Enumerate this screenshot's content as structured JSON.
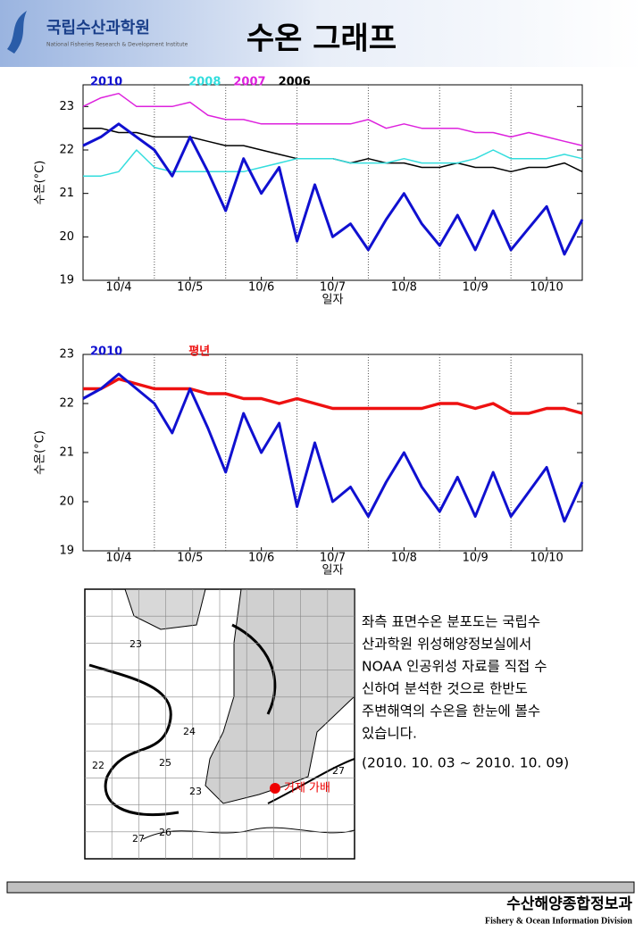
{
  "header": {
    "logo_name": "국립수산과학원",
    "logo_subtitle": "National Fisheries Research & Development Institute",
    "title": "수온 그래프"
  },
  "chart_data": [
    {
      "type": "line",
      "x_label": "일자",
      "y_label": "수온(°C)",
      "x": [
        0,
        0.25,
        0.5,
        0.75,
        1,
        1.25,
        1.5,
        1.75,
        2,
        2.25,
        2.5,
        2.75,
        3,
        3.25,
        3.5,
        3.75,
        4,
        4.25,
        4.5,
        4.75,
        5,
        5.25,
        5.5,
        5.75,
        6,
        6.25,
        6.5,
        6.75,
        7
      ],
      "xlim": [
        0,
        7
      ],
      "xticks": [
        {
          "value": 0.5,
          "label": "10/4"
        },
        {
          "value": 1.5,
          "label": "10/5"
        },
        {
          "value": 2.5,
          "label": "10/6"
        },
        {
          "value": 3.5,
          "label": "10/7"
        },
        {
          "value": 4.5,
          "label": "10/8"
        },
        {
          "value": 5.5,
          "label": "10/9"
        },
        {
          "value": 6.5,
          "label": "10/10"
        }
      ],
      "ylim": [
        19,
        23.5
      ],
      "yticks": [
        19,
        20,
        21,
        22,
        23
      ],
      "series": [
        {
          "name": "2010",
          "color": "#1010d0",
          "width": 3,
          "values": [
            22.1,
            22.3,
            22.6,
            22.3,
            22.0,
            21.4,
            22.3,
            21.5,
            20.6,
            21.8,
            21.0,
            21.6,
            19.9,
            21.2,
            20.0,
            20.3,
            19.7,
            20.4,
            21.0,
            20.3,
            19.8,
            20.5,
            19.7,
            20.6,
            19.7,
            20.2,
            20.7,
            19.6,
            20.4
          ]
        },
        {
          "name": "2008",
          "color": "#33dddd",
          "width": 1.5,
          "values": [
            21.4,
            21.4,
            21.5,
            22.0,
            21.6,
            21.5,
            21.5,
            21.5,
            21.5,
            21.5,
            21.6,
            21.7,
            21.8,
            21.8,
            21.8,
            21.7,
            21.7,
            21.7,
            21.8,
            21.7,
            21.7,
            21.7,
            21.8,
            22.0,
            21.8,
            21.8,
            21.8,
            21.9,
            21.8
          ]
        },
        {
          "name": "2007",
          "color": "#dd22dd",
          "width": 1.5,
          "values": [
            23.0,
            23.2,
            23.3,
            23.0,
            23.0,
            23.0,
            23.1,
            22.8,
            22.7,
            22.7,
            22.6,
            22.6,
            22.6,
            22.6,
            22.6,
            22.6,
            22.7,
            22.5,
            22.6,
            22.5,
            22.5,
            22.5,
            22.4,
            22.4,
            22.3,
            22.4,
            22.3,
            22.2,
            22.1
          ]
        },
        {
          "name": "2006",
          "color": "#000000",
          "width": 1.5,
          "values": [
            22.5,
            22.5,
            22.4,
            22.4,
            22.3,
            22.3,
            22.3,
            22.2,
            22.1,
            22.1,
            22.0,
            21.9,
            21.8,
            21.8,
            21.8,
            21.7,
            21.8,
            21.7,
            21.7,
            21.6,
            21.6,
            21.7,
            21.6,
            21.6,
            21.5,
            21.6,
            21.6,
            21.7,
            21.5
          ]
        }
      ]
    },
    {
      "type": "line",
      "x_label": "일자",
      "y_label": "수온(°C)",
      "x": [
        0,
        0.25,
        0.5,
        0.75,
        1,
        1.25,
        1.5,
        1.75,
        2,
        2.25,
        2.5,
        2.75,
        3,
        3.25,
        3.5,
        3.75,
        4,
        4.25,
        4.5,
        4.75,
        5,
        5.25,
        5.5,
        5.75,
        6,
        6.25,
        6.5,
        6.75,
        7
      ],
      "xlim": [
        0,
        7
      ],
      "xticks": [
        {
          "value": 0.5,
          "label": "10/4"
        },
        {
          "value": 1.5,
          "label": "10/5"
        },
        {
          "value": 2.5,
          "label": "10/6"
        },
        {
          "value": 3.5,
          "label": "10/7"
        },
        {
          "value": 4.5,
          "label": "10/8"
        },
        {
          "value": 5.5,
          "label": "10/9"
        },
        {
          "value": 6.5,
          "label": "10/10"
        }
      ],
      "ylim": [
        19,
        23
      ],
      "yticks": [
        19,
        20,
        21,
        22,
        23
      ],
      "series": [
        {
          "name": "2010",
          "color": "#1010d0",
          "width": 3,
          "values": [
            22.1,
            22.3,
            22.6,
            22.3,
            22.0,
            21.4,
            22.3,
            21.5,
            20.6,
            21.8,
            21.0,
            21.6,
            19.9,
            21.2,
            20.0,
            20.3,
            19.7,
            20.4,
            21.0,
            20.3,
            19.8,
            20.5,
            19.7,
            20.6,
            19.7,
            20.2,
            20.7,
            19.6,
            20.4
          ]
        },
        {
          "name": "평년",
          "color": "#ee1111",
          "width": 3.5,
          "values": [
            22.3,
            22.3,
            22.5,
            22.4,
            22.3,
            22.3,
            22.3,
            22.2,
            22.2,
            22.1,
            22.1,
            22.0,
            22.1,
            22.0,
            21.9,
            21.9,
            21.9,
            21.9,
            21.9,
            21.9,
            22.0,
            22.0,
            21.9,
            22.0,
            21.8,
            21.8,
            21.9,
            21.9,
            21.8
          ]
        }
      ]
    }
  ],
  "map": {
    "contours": [
      "23",
      "24",
      "25",
      "22",
      "23",
      "26",
      "27",
      "27"
    ],
    "station": "거제 가배"
  },
  "description": {
    "lines": [
      "좌측 표면수온 분포도는 국립수",
      "산과학원 위성해양정보실에서",
      "NOAA 인공위성 자료를 직접 수",
      "신하여 분석한 것으로  한반도",
      "주변해역의 수온을 한눈에 볼수",
      "있습니다."
    ],
    "period": "(2010. 10. 03 ~ 2010. 10. 09)"
  },
  "footer": {
    "division": "수산해양종합정보과",
    "division_en": "Fishery & Ocean Information Division"
  }
}
